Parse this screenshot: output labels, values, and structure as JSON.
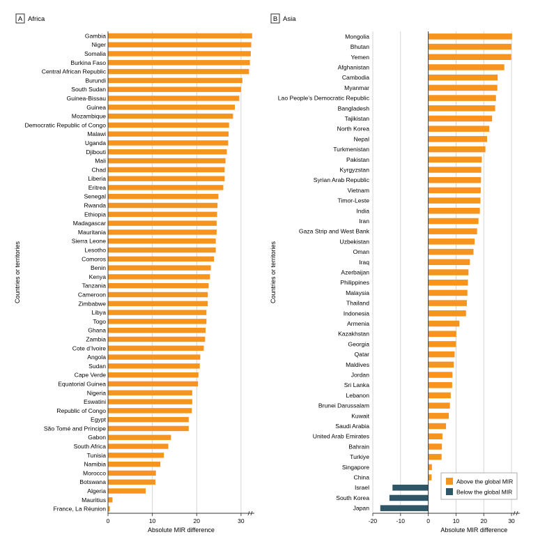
{
  "colors": {
    "above": "#f7941d",
    "below": "#2e5666",
    "grid": "#cccccc",
    "axis": "#333333"
  },
  "chart_data": [
    {
      "type": "bar",
      "orientation": "horizontal",
      "panel_letter": "A",
      "panel_title": "Africa",
      "xlabel": "Absolute MIR difference",
      "ylabel": "Countries or territories",
      "xlim": [
        0,
        33
      ],
      "xticks": [
        0,
        10,
        20,
        30
      ],
      "grid": true,
      "categories": [
        "Gambia",
        "Niger",
        "Somalia",
        "Burkina Faso",
        "Central African Republic",
        "Burundi",
        "South Sudan",
        "Guinea-Bissau",
        "Guinea",
        "Mozambique",
        "Democratic Republic of Congo",
        "Malawi",
        "Uganda",
        "Djibouti",
        "Mali",
        "Chad",
        "Liberia",
        "Eritrea",
        "Senegal",
        "Rwanda",
        "Ethiopia",
        "Madagascar",
        "Mauritania",
        "Sierra Leone",
        "Lesotho",
        "Comoros",
        "Benin",
        "Kenya",
        "Tanzania",
        "Cameroon",
        "Zimbabwe",
        "Libya",
        "Togo",
        "Ghana",
        "Zambia",
        "Cote d’Ivoire",
        "Angola",
        "Sudan",
        "Cape Verde",
        "Equatorial Guinea",
        "Nigeria",
        "Eswatini",
        "Republic of Congo",
        "Egypt",
        "São Tomé and Príncipe",
        "Gabon",
        "South Africa",
        "Tunisia",
        "Namibia",
        "Morocco",
        "Botswana",
        "Algeria",
        "Mauritius",
        "France, La Réunion"
      ],
      "values": [
        32.5,
        32.3,
        32.2,
        32.0,
        31.8,
        30.3,
        30.0,
        29.6,
        28.6,
        28.2,
        27.3,
        27.2,
        27.1,
        26.8,
        26.5,
        26.3,
        26.3,
        26.0,
        24.9,
        24.7,
        24.6,
        24.5,
        24.5,
        24.3,
        24.3,
        23.9,
        23.2,
        23.0,
        22.7,
        22.5,
        22.5,
        22.2,
        22.2,
        22.0,
        21.9,
        21.6,
        20.8,
        20.7,
        20.4,
        20.3,
        19.0,
        19.0,
        18.9,
        18.2,
        18.2,
        14.2,
        13.6,
        12.6,
        11.8,
        10.8,
        10.7,
        8.5,
        1.0,
        0.4
      ]
    },
    {
      "type": "bar",
      "orientation": "horizontal",
      "panel_letter": "B",
      "panel_title": "Asia",
      "xlabel": "Absolute MIR difference",
      "ylabel": "Countries or territories",
      "xlim": [
        -20,
        33
      ],
      "xticks": [
        -20,
        -10,
        0,
        10,
        20,
        30
      ],
      "grid": true,
      "legend": {
        "position": "bottom-right",
        "above_label": "Above the global MIR",
        "below_label": "Below the global MIR"
      },
      "categories": [
        "Mongolia",
        "Bhutan",
        "Yemen",
        "Afghanistan",
        "Cambodia",
        "Myanmar",
        "Lao People’s Democratic Republic",
        "Bangladesh",
        "Tajikistan",
        "North Korea",
        "Nepal",
        "Turkmenistan",
        "Pakistan",
        "Kyrgyzstan",
        "Syrian Arab Republic",
        "Vietnam",
        "Timor-Leste",
        "India",
        "Iran",
        "Gaza Strip and West Bank",
        "Uzbekistan",
        "Oman",
        "Iraq",
        "Azerbaijan",
        "Philippines",
        "Malaysia",
        "Thailand",
        "Indonesia",
        "Armenia",
        "Kazakhstan",
        "Georgia",
        "Qatar",
        "Maldives",
        "Jordan",
        "Sri Lanka",
        "Lebanon",
        "Brunei Darussalam",
        "Kuwait",
        "Saudi Arabia",
        "United Arab Emirates",
        "Bahrain",
        "Turkiye",
        "Singapore",
        "China",
        "Israel",
        "South Korea",
        "Japan"
      ],
      "values": [
        30.2,
        30.0,
        29.9,
        27.4,
        25.0,
        24.9,
        24.4,
        24.1,
        23.0,
        22.0,
        21.2,
        20.6,
        19.3,
        19.1,
        19.0,
        18.9,
        18.8,
        18.6,
        18.1,
        17.6,
        16.7,
        16.3,
        15.0,
        14.5,
        14.3,
        14.1,
        13.9,
        13.6,
        11.2,
        10.1,
        10.0,
        9.5,
        9.2,
        8.7,
        8.6,
        8.1,
        7.8,
        7.4,
        6.4,
        5.1,
        4.9,
        4.8,
        1.3,
        1.2,
        -12.9,
        -14.0,
        -17.3
      ]
    }
  ]
}
